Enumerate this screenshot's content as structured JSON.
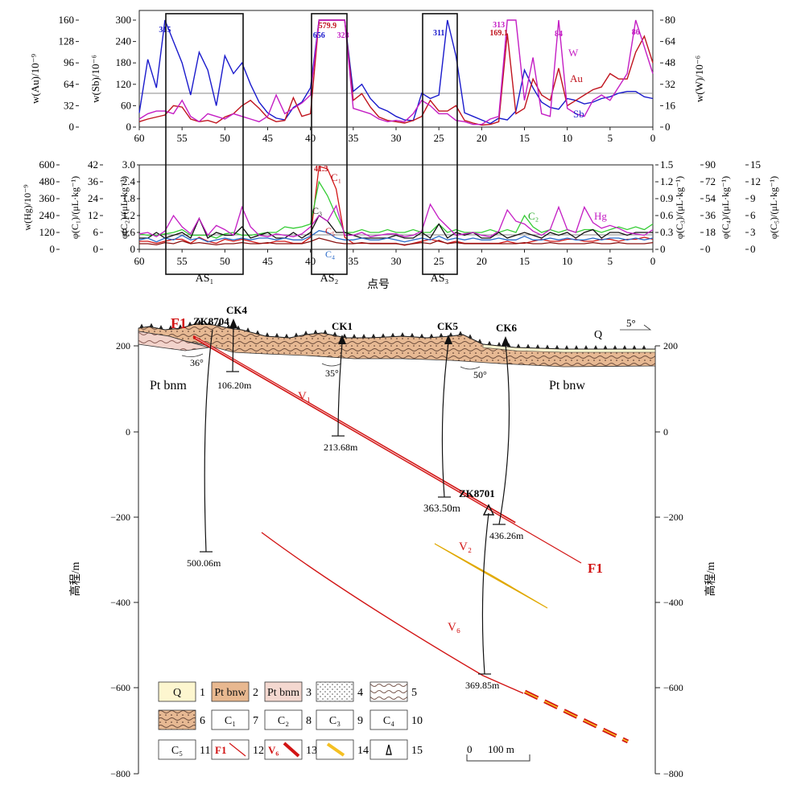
{
  "top_chart": {
    "axis_labels": {
      "au": "w(Au)/10⁻⁹",
      "sb": "w(Sb)/10⁻⁶",
      "w": "w(W)/10⁻⁶"
    },
    "au_ticks": [
      "160",
      "128",
      "96",
      "64",
      "32",
      "0"
    ],
    "sb_ticks": [
      "300",
      "240",
      "180",
      "120",
      "60",
      "0"
    ],
    "w_ticks": [
      "80",
      "64",
      "48",
      "32",
      "16",
      "0"
    ],
    "x_ticks": [
      "60",
      "55",
      "50",
      "45",
      "40",
      "35",
      "30",
      "25",
      "20",
      "15",
      "10",
      "5",
      "0"
    ],
    "series_labels": {
      "w": "W",
      "au": "Au",
      "sb": "Sb"
    },
    "peak_labels": [
      {
        "text": "315",
        "color": "#1a1acc"
      },
      {
        "text": "656",
        "color": "#1a1acc"
      },
      {
        "text": "579.9",
        "color": "#c0141e"
      },
      {
        "text": "328",
        "color": "#c41ec4"
      },
      {
        "text": "311",
        "color": "#1a1acc"
      },
      {
        "text": "313",
        "color": "#c41ec4"
      },
      {
        "text": "169.1",
        "color": "#c0141e"
      },
      {
        "text": "84",
        "color": "#c41ec4"
      },
      {
        "text": "86",
        "color": "#c41ec4"
      }
    ]
  },
  "bottom_chart": {
    "axis_labels": {
      "hg": "w(Hg)/10⁻⁹",
      "c1": "φ(C₁)/(μL·kg⁻¹)",
      "c2": "φ(C₂)/(μL·kg⁻¹)",
      "c3": "φ(C₃)/(μL·kg⁻¹)",
      "c4": "φ(C₄)/(μL·kg⁻¹)",
      "c5": "φ(C₅)/(μL·kg⁻¹)"
    },
    "hg_ticks": [
      "600",
      "480",
      "360",
      "240",
      "120",
      "0"
    ],
    "c1_ticks": [
      "42",
      "36",
      "24",
      "12",
      "6",
      "0"
    ],
    "c2_ticks": [
      "3.0",
      "2.4",
      "1.8",
      "1.2",
      "0.6",
      "0"
    ],
    "c3_ticks": [
      "1.5",
      "1.2",
      "0.9",
      "0.6",
      "0.3",
      "0"
    ],
    "c4_ticks": [
      "90",
      "72",
      "54",
      "36",
      "18",
      "0"
    ],
    "c5_ticks": [
      "15",
      "12",
      "9",
      "6",
      "3",
      "0"
    ],
    "x_ticks": [
      "60",
      "55",
      "50",
      "45",
      "40",
      "35",
      "30",
      "25",
      "20",
      "15",
      "10",
      "5",
      "0"
    ],
    "peak_label": "41.3",
    "series_labels": {
      "c1": "C₁",
      "c2": "C₂",
      "c3": "C₃",
      "c4": "C₄",
      "c5": "C₅",
      "hg": "Hg"
    },
    "xlabel": "点号",
    "anomaly_labels": [
      "AS₁",
      "AS₂",
      "AS₃"
    ]
  },
  "section": {
    "elev_ticks": [
      "200",
      "0",
      "−200",
      "−400",
      "−600",
      "−800"
    ],
    "ylabel": "高程/m",
    "dip_labels": [
      "36°",
      "35°",
      "50°"
    ],
    "strike": "5°",
    "formations": [
      "Pt bnm",
      "Pt bnw",
      "Q"
    ],
    "fault_label": "F1",
    "vein_labels": [
      "V₁",
      "V₂",
      "V₆"
    ],
    "boreholes": [
      {
        "name": "ZK8704",
        "depth": ""
      },
      {
        "name": "CK4",
        "depth": "106.20m"
      },
      {
        "name": "CK1",
        "depth": "213.68m"
      },
      {
        "name": "CK5",
        "depth": "363.50m"
      },
      {
        "name": "CK6",
        "depth": "436.26m"
      },
      {
        "name": "ZK8701",
        "depth": "369.85m"
      },
      {
        "name": "",
        "depth": "500.06m"
      }
    ],
    "scale_label": "0      100 m"
  },
  "legend": {
    "items": [
      {
        "n": "1",
        "text": "Q",
        "color": "#fdf6cf"
      },
      {
        "n": "2",
        "text": "Pt bnw",
        "color": "#e8b890"
      },
      {
        "n": "3",
        "text": "Pt bnm",
        "color": "#f4d8d0"
      },
      {
        "n": "4",
        "text": ""
      },
      {
        "n": "5",
        "text": ""
      },
      {
        "n": "6",
        "text": ""
      },
      {
        "n": "7",
        "text": "C₁"
      },
      {
        "n": "8",
        "text": "C₂"
      },
      {
        "n": "9",
        "text": "C₃"
      },
      {
        "n": "10",
        "text": "C₄"
      },
      {
        "n": "11",
        "text": "C₅"
      },
      {
        "n": "12",
        "text": "F1"
      },
      {
        "n": "13",
        "text": "V₆"
      },
      {
        "n": "14",
        "text": ""
      },
      {
        "n": "15",
        "text": ""
      }
    ]
  },
  "chart_data": [
    {
      "type": "line",
      "x": [
        60,
        59,
        58,
        57,
        56,
        55,
        54,
        53,
        52,
        51,
        50,
        49,
        48,
        47,
        46,
        45,
        44,
        43,
        42,
        41,
        40,
        39,
        38,
        37,
        36,
        35,
        34,
        33,
        32,
        31,
        30,
        29,
        28,
        27,
        26,
        25,
        24,
        23,
        22,
        21,
        20,
        19,
        18,
        17,
        16,
        15,
        14,
        13,
        12,
        11,
        10,
        9,
        8,
        7,
        6,
        5,
        4,
        3,
        2,
        1,
        0
      ],
      "xlim": [
        60,
        0
      ],
      "series": [
        {
          "name": "Sb",
          "axis": "w(Sb)/10⁻⁶",
          "ylim": [
            0,
            300
          ],
          "values": [
            40,
            190,
            110,
            300,
            240,
            180,
            90,
            210,
            160,
            60,
            200,
            150,
            180,
            120,
            70,
            40,
            25,
            20,
            55,
            70,
            110,
            300,
            300,
            300,
            300,
            100,
            120,
            80,
            55,
            45,
            30,
            20,
            18,
            95,
            80,
            90,
            300,
            200,
            40,
            30,
            20,
            10,
            25,
            20,
            45,
            160,
            110,
            70,
            55,
            50,
            80,
            75,
            65,
            70,
            80,
            85,
            95,
            100,
            100,
            85,
            80
          ]
        },
        {
          "name": "Au",
          "axis": "w(Au)/10⁻⁹",
          "ylim": [
            0,
            160
          ],
          "values": [
            8,
            12,
            15,
            18,
            32,
            30,
            12,
            8,
            10,
            6,
            15,
            20,
            32,
            40,
            28,
            14,
            8,
            10,
            44,
            16,
            20,
            160,
            160,
            160,
            160,
            40,
            50,
            30,
            15,
            10,
            8,
            6,
            10,
            16,
            40,
            24,
            24,
            32,
            10,
            6,
            3,
            4,
            8,
            140,
            20,
            28,
            72,
            48,
            40,
            88,
            32,
            40,
            48,
            56,
            60,
            80,
            72,
            72,
            112,
            136,
            96
          ]
        },
        {
          "name": "W",
          "axis": "w(W)/10⁻⁶",
          "ylim": [
            0,
            80
          ],
          "values": [
            6,
            10,
            12,
            12,
            10,
            20,
            8,
            4,
            10,
            8,
            6,
            10,
            8,
            6,
            4,
            8,
            24,
            10,
            14,
            18,
            24,
            80,
            80,
            80,
            80,
            14,
            12,
            10,
            6,
            4,
            5,
            4,
            10,
            20,
            16,
            10,
            10,
            5,
            4,
            2,
            2,
            6,
            8,
            80,
            80,
            20,
            52,
            10,
            8,
            80,
            14,
            10,
            8,
            20,
            24,
            20,
            30,
            40,
            80,
            60,
            40
          ]
        }
      ]
    },
    {
      "type": "line",
      "x": [
        60,
        59,
        58,
        57,
        56,
        55,
        54,
        53,
        52,
        51,
        50,
        49,
        48,
        47,
        46,
        45,
        44,
        43,
        42,
        41,
        40,
        39,
        38,
        37,
        36,
        35,
        34,
        33,
        32,
        31,
        30,
        29,
        28,
        27,
        26,
        25,
        24,
        23,
        22,
        21,
        20,
        19,
        18,
        17,
        16,
        15,
        14,
        13,
        12,
        11,
        10,
        9,
        8,
        7,
        6,
        5,
        4,
        3,
        2,
        1,
        0
      ],
      "xlim": [
        60,
        0
      ],
      "series": [
        {
          "name": "C₁",
          "axis": "φ(C₁)/(μL·kg⁻¹)",
          "ylim": [
            0,
            42
          ],
          "values": [
            4,
            4,
            3,
            4,
            5,
            5,
            3,
            6,
            4,
            3,
            5,
            4,
            5,
            4,
            3,
            3,
            4,
            4,
            3,
            3,
            6,
            41.3,
            40,
            30,
            6,
            3,
            3,
            3,
            3,
            3,
            3,
            2,
            3,
            4,
            5,
            4,
            3,
            4,
            3,
            3,
            3,
            3,
            3,
            4,
            3,
            3,
            4,
            5,
            4,
            4,
            5,
            5,
            4,
            4,
            5,
            5,
            4,
            5,
            5,
            6,
            5
          ]
        },
        {
          "name": "C₂",
          "axis": "φ(C₂)/(μL·kg⁻¹)",
          "ylim": [
            0,
            3.0
          ],
          "values": [
            0.55,
            0.5,
            0.5,
            0.55,
            0.6,
            0.7,
            0.5,
            0.5,
            0.5,
            0.4,
            0.55,
            0.6,
            0.5,
            0.5,
            0.55,
            0.6,
            0.6,
            0.8,
            0.75,
            0.8,
            0.9,
            2.4,
            1.9,
            1.2,
            0.6,
            0.6,
            0.7,
            0.6,
            0.6,
            0.7,
            0.6,
            0.6,
            0.7,
            0.6,
            0.6,
            0.9,
            0.6,
            0.7,
            0.6,
            0.6,
            0.6,
            0.7,
            0.6,
            0.7,
            0.6,
            1.2,
            0.8,
            0.6,
            0.7,
            0.6,
            0.7,
            0.6,
            0.7,
            0.7,
            0.6,
            0.7,
            0.8,
            0.7,
            0.8,
            0.7,
            0.9
          ]
        },
        {
          "name": "C₃",
          "axis": "φ(C₃)/(μL·kg⁻¹)",
          "ylim": [
            0,
            1.5
          ],
          "values": [
            0.2,
            0.2,
            0.3,
            0.2,
            0.25,
            0.3,
            0.2,
            0.55,
            0.2,
            0.3,
            0.25,
            0.25,
            0.4,
            0.2,
            0.25,
            0.3,
            0.2,
            0.2,
            0.3,
            0.2,
            0.3,
            0.6,
            0.5,
            0.3,
            0.3,
            0.25,
            0.2,
            0.2,
            0.2,
            0.2,
            0.25,
            0.2,
            0.2,
            0.3,
            0.2,
            0.45,
            0.2,
            0.3,
            0.25,
            0.3,
            0.2,
            0.2,
            0.3,
            0.2,
            0.25,
            0.3,
            0.25,
            0.2,
            0.3,
            0.25,
            0.3,
            0.2,
            0.3,
            0.35,
            0.2,
            0.3,
            0.3,
            0.25,
            0.3,
            0.3,
            0.3
          ]
        },
        {
          "name": "C₄",
          "axis": "φ(C₄)/(μL·kg⁻¹)",
          "ylim": [
            0,
            90
          ],
          "values": [
            10,
            12,
            8,
            12,
            10,
            15,
            10,
            12,
            8,
            10,
            12,
            10,
            12,
            10,
            12,
            12,
            10,
            12,
            10,
            10,
            14,
            20,
            18,
            12,
            10,
            10,
            12,
            10,
            10,
            12,
            10,
            8,
            10,
            12,
            10,
            14,
            10,
            12,
            10,
            12,
            10,
            10,
            12,
            10,
            10,
            14,
            10,
            10,
            12,
            10,
            12,
            10,
            10,
            12,
            10,
            12,
            12,
            10,
            12,
            10,
            12
          ]
        },
        {
          "name": "C₅",
          "axis": "φ(C₅)/(μL·kg⁻¹)",
          "ylim": [
            0,
            15
          ],
          "values": [
            1,
            1,
            0.8,
            1.2,
            1,
            1.5,
            1,
            1.2,
            1,
            0.8,
            1,
            1,
            1.2,
            1,
            1,
            1.2,
            1,
            1,
            1,
            1,
            1.4,
            2,
            1.6,
            1.2,
            1,
            1,
            1.2,
            1,
            1,
            1,
            1,
            0.8,
            1,
            1.2,
            1,
            1.6,
            1,
            1.2,
            1,
            1,
            1,
            1,
            1,
            1,
            1,
            1.2,
            1,
            1,
            1.2,
            1,
            1,
            1,
            1,
            1.2,
            1,
            1,
            1.2,
            1,
            1,
            1,
            1.2
          ]
        },
        {
          "name": "Hg",
          "axis": "w(Hg)/10⁻⁹",
          "ylim": [
            0,
            600
          ],
          "values": [
            110,
            120,
            90,
            130,
            240,
            160,
            110,
            220,
            100,
            170,
            140,
            100,
            300,
            160,
            100,
            90,
            110,
            100,
            90,
            110,
            160,
            240,
            200,
            310,
            100,
            100,
            120,
            90,
            100,
            110,
            110,
            90,
            100,
            130,
            320,
            220,
            160,
            100,
            110,
            120,
            100,
            90,
            130,
            280,
            200,
            180,
            130,
            100,
            140,
            300,
            140,
            120,
            300,
            190,
            150,
            170,
            150,
            120,
            110,
            100,
            140
          ]
        }
      ]
    }
  ]
}
